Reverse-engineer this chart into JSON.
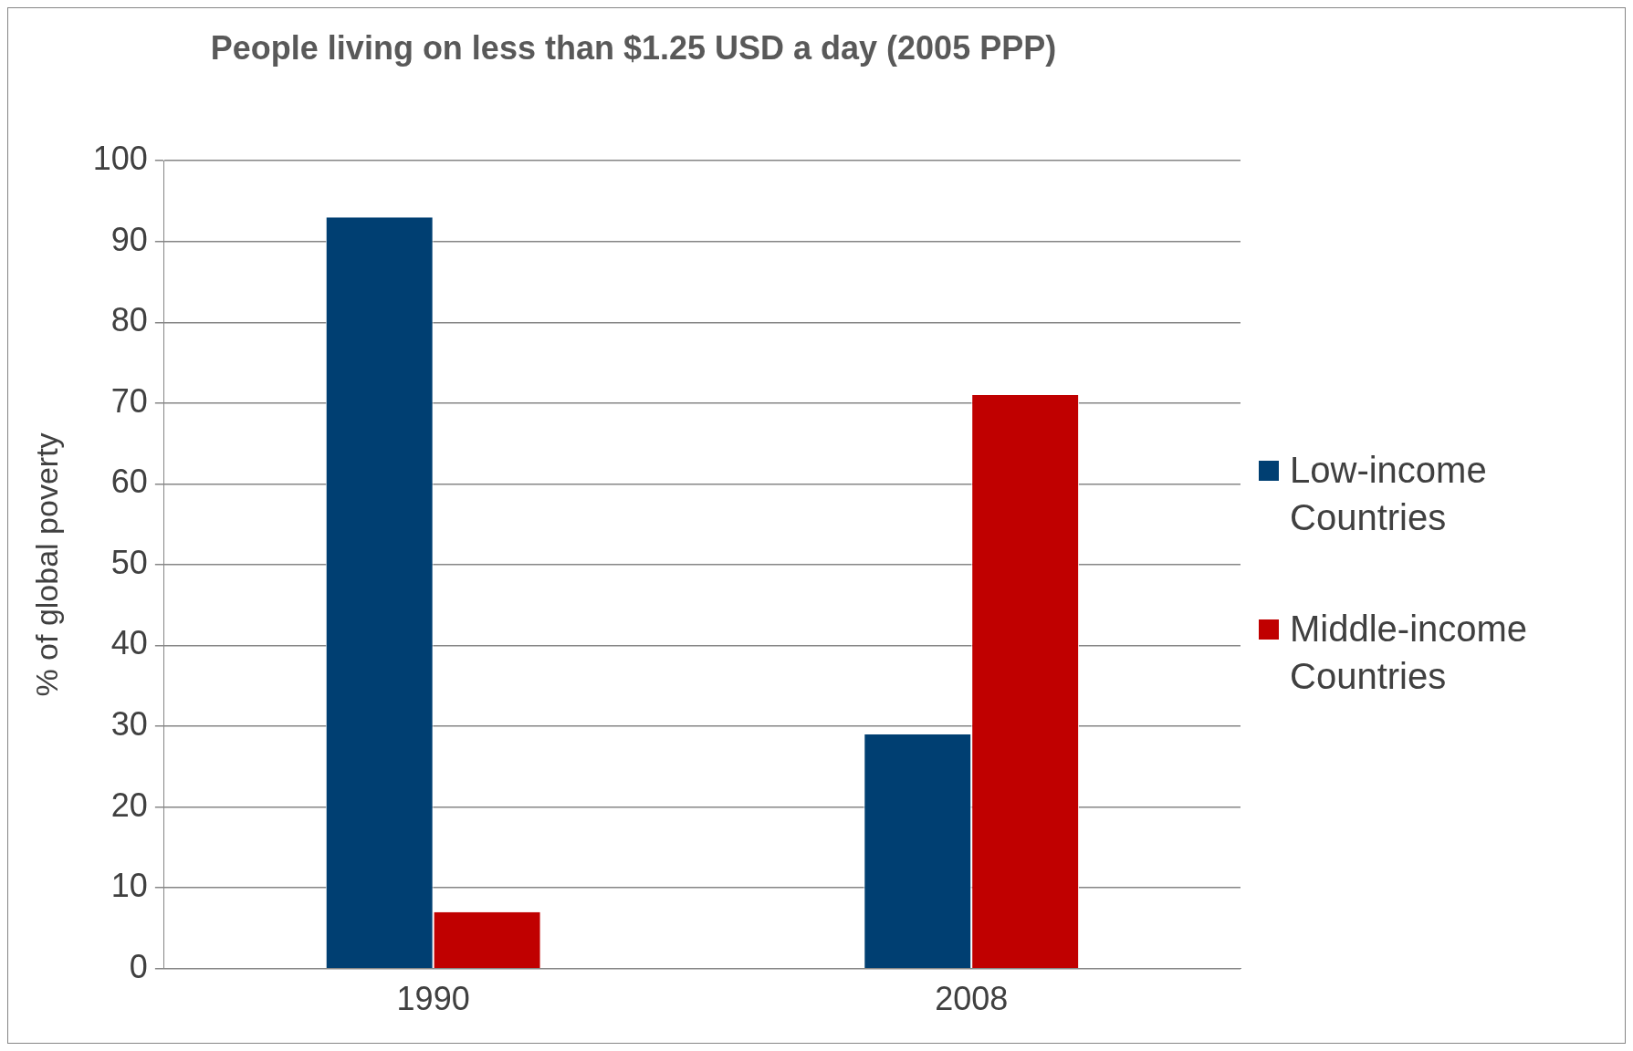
{
  "chart_data": {
    "type": "bar",
    "title": "People living on less than $1.25 USD a day (2005 PPP)",
    "ylabel": "% of global poverty",
    "categories": [
      "1990",
      "2008"
    ],
    "series": [
      {
        "name": "Low-income Countries",
        "color": "#003f72",
        "values": [
          93,
          29
        ]
      },
      {
        "name": "Middle-income Countries",
        "color": "#c00000",
        "values": [
          7,
          71
        ]
      }
    ],
    "ylim": [
      0,
      100
    ],
    "yticks": [
      0,
      10,
      20,
      30,
      40,
      50,
      60,
      70,
      80,
      90,
      100
    ],
    "grid": "y",
    "legend": "right"
  }
}
